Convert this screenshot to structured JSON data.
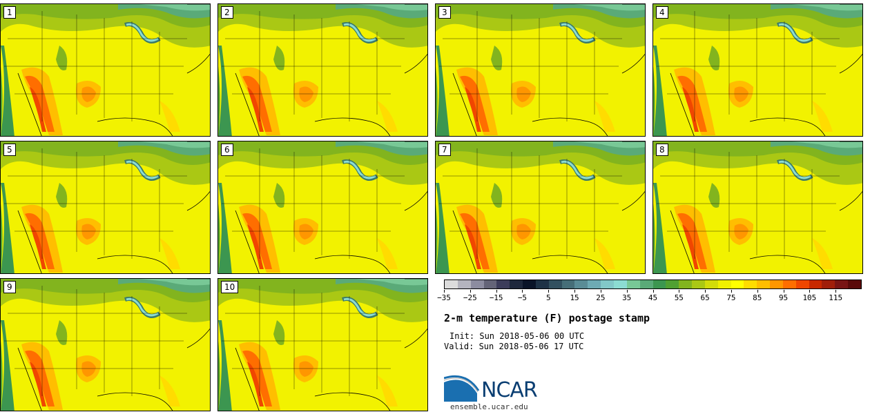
{
  "panels": [
    "1",
    "2",
    "3",
    "4",
    "5",
    "6",
    "7",
    "8",
    "9",
    "10"
  ],
  "colorbar": {
    "colors": [
      "#dcdcdc",
      "#b4b4be",
      "#8c8ca0",
      "#646478",
      "#3c3c5a",
      "#1e283c",
      "#0a1428",
      "#1e3246",
      "#32505f",
      "#466e78",
      "#5a8c96",
      "#6eaab4",
      "#82c8c8",
      "#8cdcd2",
      "#78c896",
      "#5aaa78",
      "#3c9650",
      "#50a032",
      "#82b41e",
      "#aac814",
      "#d2dc0a",
      "#f0f000",
      "#ffff00",
      "#ffdc00",
      "#ffbe00",
      "#ff9600",
      "#ff6e00",
      "#f04600",
      "#c82800",
      "#a01e0a",
      "#781414",
      "#5a0a0a"
    ],
    "tick_labels": [
      "−35",
      "−25",
      "−15",
      "−5",
      "5",
      "15",
      "25",
      "35",
      "45",
      "55",
      "65",
      "75",
      "85",
      "95",
      "105",
      "115"
    ]
  },
  "title": "2-m temperature (F) postage stamp",
  "init": "Init: Sun 2018-05-06 00 UTC",
  "valid": "Valid: Sun 2018-05-06 17 UTC",
  "logo_text": "NCAR",
  "site": "ensemble.ucar.edu"
}
